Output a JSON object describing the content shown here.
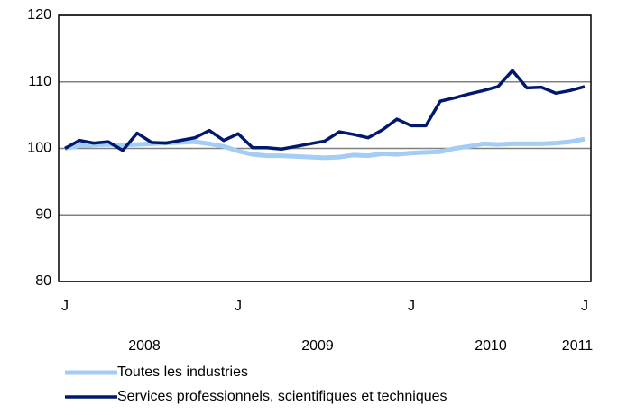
{
  "chart_data": {
    "type": "line",
    "categories": [
      "J",
      null,
      null,
      null,
      null,
      null,
      null,
      null,
      null,
      null,
      null,
      null,
      "J",
      null,
      null,
      null,
      null,
      null,
      null,
      null,
      null,
      null,
      null,
      null,
      "J",
      null,
      null,
      null,
      null,
      null,
      null,
      null,
      null,
      null,
      null,
      null,
      "J"
    ],
    "years": [
      "2008",
      "2009",
      "2010",
      "2011"
    ],
    "series": [
      {
        "name": "Toutes les industries",
        "color": "#a3cdf5",
        "values": [
          100,
          100.4,
          100.5,
          100.6,
          100.5,
          100.6,
          100.7,
          100.8,
          100.9,
          101,
          100.7,
          100.3,
          99.6,
          99.1,
          98.9,
          98.9,
          98.8,
          98.7,
          98.6,
          98.7,
          99,
          98.9,
          99.2,
          99.1,
          99.3,
          99.4,
          99.5,
          100,
          100.3,
          100.7,
          100.6,
          100.7,
          100.7,
          100.7,
          100.8,
          101,
          101.4
        ]
      },
      {
        "name": "Services professionnels, scientifiques et techniques",
        "color": "#00186e",
        "values": [
          100,
          101.2,
          100.8,
          101,
          99.7,
          102.3,
          100.9,
          100.8,
          101.2,
          101.6,
          102.7,
          101.2,
          102.2,
          100.1,
          100.1,
          99.9,
          100.3,
          100.7,
          101.1,
          102.5,
          102.1,
          101.6,
          102.8,
          104.4,
          103.4,
          103.4,
          107.1,
          107.6,
          108.2,
          108.7,
          109.3,
          111.7,
          109.1,
          109.2,
          108.3,
          108.7,
          109.3
        ]
      }
    ],
    "ylim": [
      80,
      120
    ],
    "yticks": [
      80,
      90,
      100,
      110,
      120
    ],
    "grid": true,
    "legend": "bottom"
  }
}
